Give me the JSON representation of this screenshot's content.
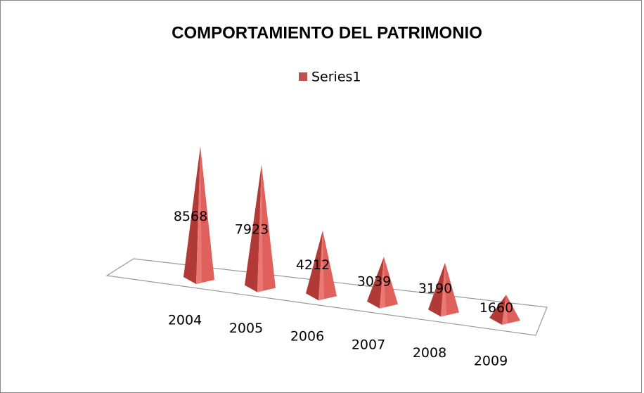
{
  "chart_data": {
    "type": "pyramid",
    "title": "COMPORTAMIENTO DEL PATRIMONIO",
    "categories": [
      "2004",
      "2005",
      "2006",
      "2007",
      "2008",
      "2009"
    ],
    "series": [
      {
        "name": "Series1",
        "color": "#c0504d",
        "values": [
          8568,
          7923,
          4212,
          3039,
          3190,
          1660
        ]
      }
    ],
    "legend": "top"
  }
}
